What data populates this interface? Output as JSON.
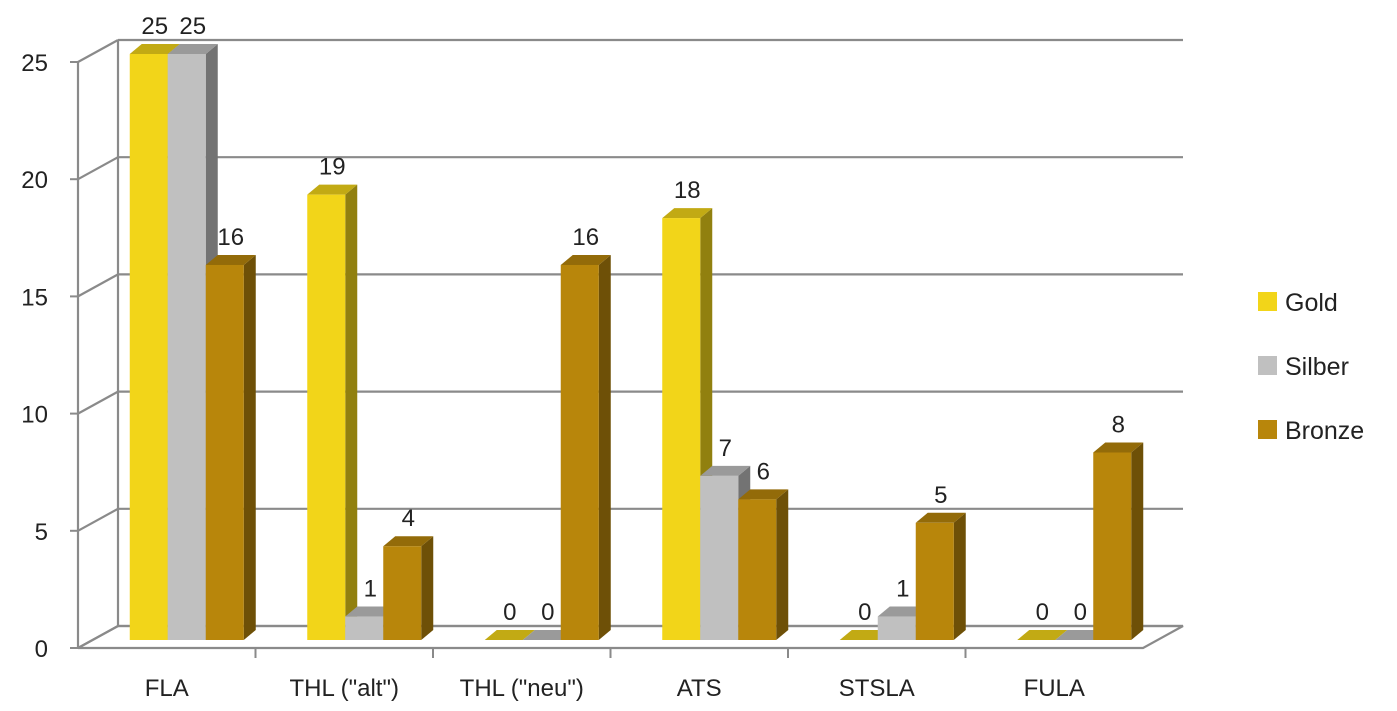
{
  "chart_data": {
    "type": "bar",
    "categories": [
      "FLA",
      "THL (\"alt\")",
      "THL (\"neu\")",
      "ATS",
      "STSLA",
      "FULA"
    ],
    "series": [
      {
        "name": "Gold",
        "values": [
          25,
          19,
          0,
          18,
          0,
          0
        ],
        "color": "#F2D519"
      },
      {
        "name": "Silber",
        "values": [
          25,
          1,
          0,
          7,
          1,
          0
        ],
        "color": "#C0C0C0"
      },
      {
        "name": "Bronze",
        "values": [
          16,
          4,
          16,
          6,
          5,
          8
        ],
        "color": "#B8860B"
      }
    ],
    "yticks": [
      0,
      5,
      10,
      15,
      20,
      25
    ],
    "ylim": [
      0,
      25
    ],
    "legend_position": "right",
    "grid": true,
    "style": "3d-clustered"
  }
}
